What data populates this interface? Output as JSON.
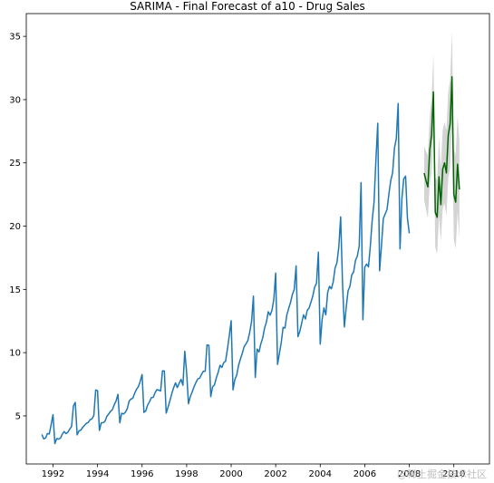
{
  "chart_data": {
    "type": "line",
    "title": "SARIMA - Final Forecast of a10 - Drug Sales",
    "xlabel": "",
    "ylabel": "",
    "xlim": [
      1990.8,
      2011.6
    ],
    "ylim": [
      1.2,
      36.8
    ],
    "x_ticks": [
      "1992",
      "1994",
      "1996",
      "1998",
      "2000",
      "2002",
      "2004",
      "2006",
      "2008",
      "2010"
    ],
    "y_ticks": [
      "5",
      "10",
      "15",
      "20",
      "25",
      "30",
      "35"
    ],
    "grid": false,
    "colors": {
      "actual": "#1f77b4",
      "forecast": "#006400",
      "interval": "#b0b0b0"
    },
    "series": [
      {
        "role": "actual",
        "x_start": 1991.5,
        "step": 0.0833333,
        "values": [
          3.53,
          3.18,
          3.25,
          3.61,
          3.57,
          4.31,
          5.09,
          2.81,
          3.21,
          3.16,
          3.24,
          3.56,
          3.76,
          3.6,
          3.71,
          3.96,
          4.16,
          5.78,
          6.07,
          3.5,
          3.81,
          3.88,
          4.09,
          4.25,
          4.42,
          4.48,
          4.7,
          4.77,
          5.03,
          7.05,
          7.0,
          3.85,
          4.45,
          4.46,
          4.57,
          4.96,
          5.15,
          5.36,
          5.49,
          5.89,
          6.18,
          6.71,
          4.45,
          5.21,
          5.15,
          5.29,
          5.56,
          6.16,
          6.33,
          6.39,
          6.79,
          7.1,
          7.31,
          7.74,
          8.27,
          5.28,
          5.4,
          5.86,
          6.12,
          6.44,
          6.47,
          6.83,
          7.08,
          7.03,
          6.97,
          8.56,
          8.55,
          5.22,
          5.69,
          6.21,
          6.75,
          7.23,
          7.61,
          7.24,
          7.58,
          7.89,
          7.42,
          10.11,
          8.46,
          5.96,
          6.53,
          6.89,
          7.3,
          7.63,
          7.92,
          7.98,
          8.27,
          8.52,
          8.53,
          10.61,
          10.58,
          6.53,
          7.3,
          7.45,
          8.0,
          8.44,
          9.0,
          8.83,
          9.21,
          9.32,
          10.29,
          11.35,
          12.53,
          7.06,
          7.87,
          8.23,
          8.99,
          9.5,
          9.95,
          10.47,
          10.7,
          10.96,
          11.6,
          12.47,
          14.47,
          8.04,
          10.28,
          10.05,
          10.7,
          11.16,
          11.94,
          12.42,
          13.23,
          12.96,
          13.36,
          14.21,
          16.29,
          9.07,
          9.94,
          10.81,
          12.0,
          11.94,
          12.98,
          13.5,
          13.97,
          14.6,
          15.01,
          16.86,
          11.26,
          11.68,
          12.33,
          12.99,
          12.66,
          13.35,
          13.52,
          13.99,
          14.48,
          15.18,
          15.49,
          17.94,
          10.67,
          12.6,
          13.54,
          12.99,
          14.76,
          15.24,
          15.05,
          15.6,
          16.69,
          17.11,
          18.32,
          20.73,
          15.56,
          12.03,
          13.58,
          14.89,
          15.23,
          16.15,
          16.38,
          17.29,
          17.64,
          18.41,
          23.44,
          12.6,
          16.75,
          17.0,
          16.78,
          18.41,
          20.46,
          21.88,
          25.22,
          28.13,
          16.47,
          18.47,
          20.6,
          20.96,
          21.31,
          22.54,
          23.59,
          24.21,
          26.16,
          26.93,
          29.69,
          18.2,
          22.16,
          23.74,
          23.95,
          20.62,
          19.43
        ]
      },
      {
        "role": "forecast",
        "x_start": 2008.6667,
        "step": 0.0833333,
        "values": [
          24.2,
          23.6,
          23.1,
          26.0,
          27.2,
          30.6,
          21.1,
          20.7,
          23.9,
          21.7,
          24.5,
          25.0,
          24.2,
          27.2,
          28.1,
          31.8,
          22.5,
          21.9,
          24.9,
          22.9
        ],
        "lower": [
          22.1,
          21.3,
          20.6,
          23.3,
          24.3,
          27.6,
          18.3,
          17.8,
          20.8,
          18.8,
          21.4,
          21.8,
          20.8,
          23.8,
          24.6,
          28.2,
          18.9,
          18.2,
          21.1,
          19.1
        ],
        "upper": [
          26.3,
          25.9,
          25.6,
          28.7,
          30.1,
          33.6,
          23.9,
          23.6,
          27.0,
          24.6,
          27.6,
          28.2,
          27.6,
          30.6,
          31.6,
          35.4,
          26.1,
          25.6,
          28.7,
          26.7
        ]
      }
    ],
    "watermark": "@稀土掘金技术社区"
  }
}
